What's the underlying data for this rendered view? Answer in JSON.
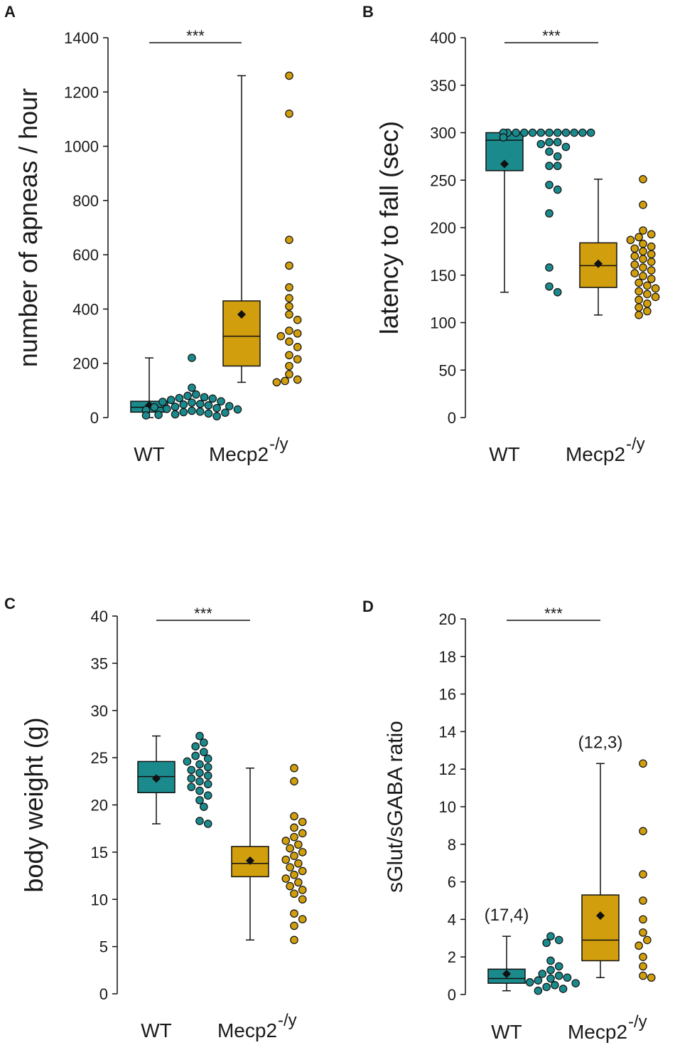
{
  "colors": {
    "wt": "#1b8a8c",
    "mecp2": "#d19e0e",
    "line": "#111111",
    "mean": "#111111"
  },
  "chart_data": [
    {
      "type": "box",
      "panel_label": "A",
      "ylabel": "number of apneas / hour",
      "ylim": [
        0,
        1400
      ],
      "yticks": [
        0,
        200,
        400,
        600,
        800,
        1000,
        1200,
        1400
      ],
      "categories": [
        "WT",
        "Mecp2"
      ],
      "mecp2_superscript": "-/y",
      "significance": "***",
      "series": [
        {
          "name": "WT",
          "box": {
            "whisker_low": 0,
            "q1": 20,
            "median": 38,
            "q3": 60,
            "whisker_high": 220
          },
          "mean": 45,
          "points": [
            220,
            110,
            85,
            80,
            75,
            72,
            70,
            65,
            60,
            58,
            55,
            50,
            48,
            45,
            42,
            40,
            38,
            35,
            32,
            30,
            28,
            25,
            22,
            20,
            18,
            15,
            12,
            10,
            8,
            5
          ]
        },
        {
          "name": "Mecp2-/y",
          "box": {
            "whisker_low": 130,
            "q1": 190,
            "median": 300,
            "q3": 430,
            "whisker_high": 1260
          },
          "mean": 380,
          "points": [
            1260,
            1120,
            655,
            560,
            480,
            440,
            410,
            380,
            360,
            320,
            310,
            300,
            280,
            260,
            230,
            215,
            190,
            160,
            140,
            135,
            130
          ]
        }
      ]
    },
    {
      "type": "box",
      "panel_label": "B",
      "ylabel": "latency to fall (sec)",
      "ylim": [
        0,
        400
      ],
      "yticks": [
        0,
        50,
        100,
        150,
        200,
        250,
        300,
        350,
        400
      ],
      "categories": [
        "WT",
        "Mecp2"
      ],
      "mecp2_superscript": "-/y",
      "significance": "***",
      "series": [
        {
          "name": "WT",
          "box": {
            "whisker_low": 132,
            "q1": 260,
            "median": 292,
            "q3": 300,
            "whisker_high": 300
          },
          "mean": 267,
          "points": [
            300,
            300,
            300,
            300,
            300,
            300,
            300,
            300,
            300,
            300,
            300,
            300,
            295,
            290,
            290,
            288,
            285,
            280,
            275,
            265,
            265,
            245,
            240,
            215,
            158,
            138,
            132
          ]
        },
        {
          "name": "Mecp2-/y",
          "box": {
            "whisker_low": 108,
            "q1": 137,
            "median": 160,
            "q3": 184,
            "whisker_high": 251
          },
          "mean": 162,
          "points": [
            251,
            224,
            197,
            193,
            190,
            187,
            183,
            180,
            178,
            175,
            172,
            170,
            167,
            164,
            161,
            158,
            155,
            152,
            149,
            146,
            142,
            139,
            136,
            133,
            130,
            127,
            124,
            120,
            116,
            112,
            108
          ]
        }
      ]
    },
    {
      "type": "box",
      "panel_label": "C",
      "ylabel": "body weight (g)",
      "ylim": [
        0,
        40
      ],
      "yticks": [
        0,
        5,
        10,
        15,
        20,
        25,
        30,
        35,
        40
      ],
      "categories": [
        "WT",
        "Mecp2"
      ],
      "mecp2_superscript": "-/y",
      "significance": "***",
      "series": [
        {
          "name": "WT",
          "box": {
            "whisker_low": 18,
            "q1": 21.3,
            "median": 23,
            "q3": 24.6,
            "whisker_high": 27.3
          },
          "mean": 22.8,
          "points": [
            27.3,
            26.6,
            26.2,
            25.6,
            25.2,
            24.9,
            24.6,
            24.3,
            24.0,
            23.7,
            23.4,
            23.1,
            22.8,
            22.5,
            22.2,
            21.9,
            21.5,
            21.0,
            20.5,
            19.8,
            18.3,
            18.0
          ]
        },
        {
          "name": "Mecp2-/y",
          "box": {
            "whisker_low": 5.7,
            "q1": 12.4,
            "median": 13.8,
            "q3": 15.6,
            "whisker_high": 23.9
          },
          "mean": 14.1,
          "points": [
            23.9,
            22.5,
            18.8,
            18.2,
            17.6,
            17.0,
            16.6,
            16.2,
            15.8,
            15.4,
            15.0,
            14.6,
            14.2,
            13.8,
            13.4,
            13.0,
            12.6,
            12.2,
            11.8,
            11.4,
            11.0,
            10.6,
            10.0,
            8.5,
            7.9,
            7.2,
            5.7
          ]
        }
      ]
    },
    {
      "type": "box",
      "panel_label": "D",
      "ylabel": "sGlut/sGABA ratio",
      "ylim": [
        0,
        20
      ],
      "yticks": [
        0,
        2,
        4,
        6,
        8,
        10,
        12,
        14,
        16,
        18,
        20
      ],
      "categories": [
        "WT",
        "Mecp2"
      ],
      "mecp2_superscript": "-/y",
      "significance": "***",
      "series": [
        {
          "name": "WT",
          "box": {
            "whisker_low": 0.2,
            "q1": 0.6,
            "median": 0.85,
            "q3": 1.35,
            "whisker_high": 3.1
          },
          "mean": 1.1,
          "points": [
            3.1,
            2.9,
            2.75,
            1.8,
            1.5,
            1.3,
            1.1,
            1.0,
            0.9,
            0.85,
            0.75,
            0.65,
            0.6,
            0.5,
            0.4,
            0.3,
            0.2
          ],
          "annotation": "(17,4)"
        },
        {
          "name": "Mecp2-/y",
          "box": {
            "whisker_low": 0.9,
            "q1": 1.8,
            "median": 2.9,
            "q3": 5.3,
            "whisker_high": 12.3
          },
          "mean": 4.2,
          "points": [
            12.3,
            8.7,
            6.4,
            5.0,
            4.0,
            3.3,
            2.9,
            2.6,
            2.0,
            1.5,
            1.0,
            0.9
          ],
          "annotation": "(12,3)"
        }
      ]
    }
  ]
}
